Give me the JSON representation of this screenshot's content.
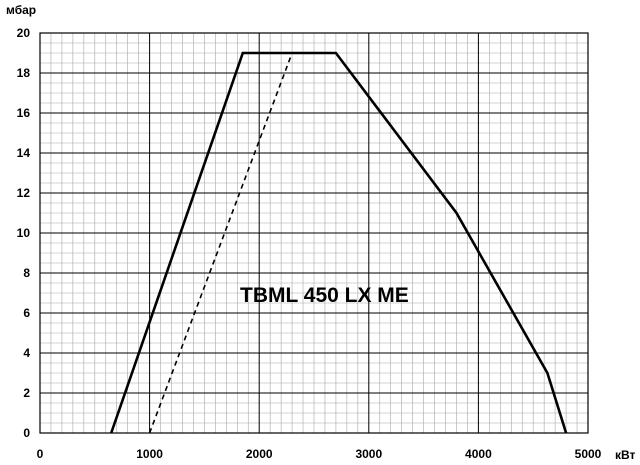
{
  "chart_data": {
    "type": "line",
    "title": "TBML 450 LX ME",
    "xlabel": "кВт",
    "ylabel": "мбар",
    "xlim": [
      0,
      5000
    ],
    "ylim": [
      0,
      20
    ],
    "grid": true,
    "x_ticks": [
      "0",
      "1000",
      "2000",
      "3000",
      "4000",
      "5000"
    ],
    "y_ticks": [
      "0",
      "2",
      "4",
      "6",
      "8",
      "10",
      "12",
      "14",
      "16",
      "18",
      "20"
    ],
    "series": [
      {
        "style": "solid",
        "x": [
          650,
          1850,
          2700,
          3800,
          4630,
          4800
        ],
        "y": [
          0,
          19,
          19,
          11,
          3,
          0
        ]
      },
      {
        "style": "dashed",
        "x": [
          1000,
          2300
        ],
        "y": [
          0,
          19
        ]
      }
    ]
  }
}
